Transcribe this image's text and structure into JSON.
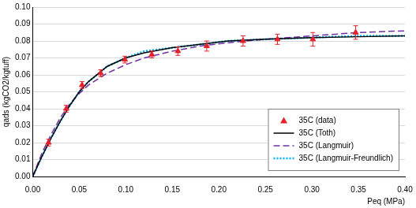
{
  "chart_data": {
    "type": "scatter",
    "x_label": "Peq (MPa)",
    "y_label": "qads (kgCO2/kgtuff)",
    "xlim": [
      0,
      0.4
    ],
    "ylim": [
      0,
      0.1
    ],
    "xticks": [
      {
        "value": 0,
        "label": "0.00"
      },
      {
        "value": 0.05,
        "label": "0.05"
      },
      {
        "value": 0.1,
        "label": "0.10"
      },
      {
        "value": 0.15,
        "label": "0.15"
      },
      {
        "value": 0.2,
        "label": "0.20"
      },
      {
        "value": 0.25,
        "label": "0.25"
      },
      {
        "value": 0.3,
        "label": "0.30"
      },
      {
        "value": 0.35,
        "label": "0.35"
      },
      {
        "value": 0.4,
        "label": "0.40"
      }
    ],
    "yticks": [
      {
        "value": 0,
        "label": "0.00"
      },
      {
        "value": 0.01,
        "label": "0.01"
      },
      {
        "value": 0.02,
        "label": "0.02"
      },
      {
        "value": 0.03,
        "label": "0.03"
      },
      {
        "value": 0.04,
        "label": "0.04"
      },
      {
        "value": 0.05,
        "label": "0.05"
      },
      {
        "value": 0.06,
        "label": "0.06"
      },
      {
        "value": 0.07,
        "label": "0.07"
      },
      {
        "value": 0.08,
        "label": "0.08"
      },
      {
        "value": 0.09,
        "label": "0.09"
      },
      {
        "value": 0.1,
        "label": "0.10"
      }
    ],
    "grid": true,
    "legend": "lower right",
    "series": [
      {
        "name": "35C (data)",
        "type": "scatter",
        "color": "#e8202a",
        "marker": "triangle",
        "x": [
          0.017,
          0.036,
          0.053,
          0.073,
          0.099,
          0.128,
          0.156,
          0.187,
          0.226,
          0.263,
          0.301,
          0.347
        ],
        "values": [
          0.02,
          0.04,
          0.054,
          0.061,
          0.069,
          0.072,
          0.074,
          0.077,
          0.08,
          0.081,
          0.081,
          0.085
        ],
        "error": [
          0.002,
          0.002,
          0.002,
          0.002,
          0.002,
          0.002,
          0.0025,
          0.003,
          0.003,
          0.003,
          0.004,
          0.004
        ]
      },
      {
        "name": "35C (Toth)",
        "type": "line",
        "color": "#000000",
        "line_style": "solid",
        "x": [
          0,
          0.01,
          0.02,
          0.03,
          0.04,
          0.05,
          0.06,
          0.08,
          0.1,
          0.12,
          0.15,
          0.18,
          0.21,
          0.25,
          0.3,
          0.35,
          0.4
        ],
        "values": [
          0,
          0.012,
          0.023,
          0.033,
          0.042,
          0.05,
          0.056,
          0.065,
          0.07,
          0.073,
          0.076,
          0.078,
          0.08,
          0.081,
          0.082,
          0.0825,
          0.083
        ]
      },
      {
        "name": "35C (Langmuir)",
        "type": "line",
        "color": "#7030a0",
        "line_style": "dashed",
        "x": [
          0,
          0.01,
          0.02,
          0.03,
          0.04,
          0.05,
          0.06,
          0.08,
          0.1,
          0.12,
          0.15,
          0.18,
          0.21,
          0.25,
          0.3,
          0.35,
          0.4
        ],
        "values": [
          0,
          0.014,
          0.025,
          0.035,
          0.043,
          0.049,
          0.054,
          0.061,
          0.066,
          0.07,
          0.074,
          0.077,
          0.079,
          0.081,
          0.083,
          0.085,
          0.086
        ]
      },
      {
        "name": "35C (Langmuir-Freundlich)",
        "type": "line",
        "color": "#00b0f0",
        "line_style": "dotted",
        "x": [
          0,
          0.01,
          0.02,
          0.03,
          0.04,
          0.05,
          0.06,
          0.08,
          0.1,
          0.12,
          0.15,
          0.18,
          0.21,
          0.25,
          0.3,
          0.35,
          0.4
        ],
        "values": [
          0,
          0.012,
          0.023,
          0.033,
          0.042,
          0.05,
          0.056,
          0.065,
          0.07,
          0.074,
          0.076,
          0.078,
          0.08,
          0.081,
          0.082,
          0.083,
          0.083
        ]
      }
    ]
  }
}
